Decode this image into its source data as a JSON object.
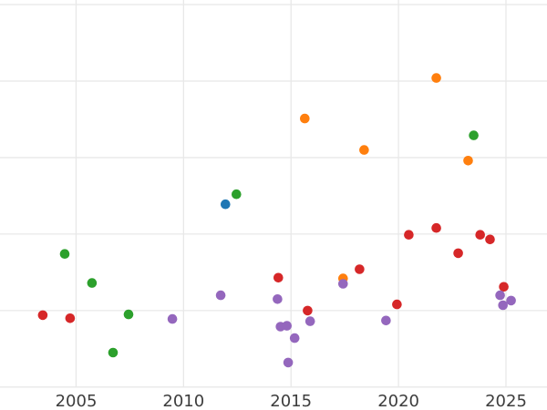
{
  "chart_data": {
    "type": "scatter",
    "title": "",
    "xlabel": "",
    "ylabel": "",
    "grid": true,
    "legend": false,
    "x_axis": {
      "tick_values": [
        2005,
        2010,
        2015,
        2020,
        2025
      ],
      "tick_labels": [
        "2005",
        "2010",
        "2015",
        "2020",
        "2025"
      ],
      "domain": [
        2001.46,
        2026.91
      ]
    },
    "y_axis": {
      "tick_labels_visible": false,
      "gridline_values": [
        0,
        1,
        2,
        3,
        4,
        5
      ],
      "domain": [
        -0.3,
        5.06
      ]
    },
    "series": [
      {
        "name": "blue",
        "color": "#1f77b4",
        "points": [
          {
            "x": 2011.95,
            "y": 2.39
          }
        ]
      },
      {
        "name": "green",
        "color": "#2ca02c",
        "points": [
          {
            "x": 2004.47,
            "y": 1.74
          },
          {
            "x": 2005.74,
            "y": 1.36
          },
          {
            "x": 2006.72,
            "y": 0.45
          },
          {
            "x": 2007.44,
            "y": 0.95
          },
          {
            "x": 2012.46,
            "y": 2.52
          },
          {
            "x": 2023.5,
            "y": 3.29
          }
        ]
      },
      {
        "name": "orange",
        "color": "#ff7f0e",
        "points": [
          {
            "x": 2015.64,
            "y": 3.51
          },
          {
            "x": 2017.42,
            "y": 1.42
          },
          {
            "x": 2018.4,
            "y": 3.1
          },
          {
            "x": 2021.76,
            "y": 4.04
          },
          {
            "x": 2023.24,
            "y": 2.96
          }
        ]
      },
      {
        "name": "red",
        "color": "#d62728",
        "points": [
          {
            "x": 2003.45,
            "y": 0.94
          },
          {
            "x": 2004.72,
            "y": 0.9
          },
          {
            "x": 2014.41,
            "y": 1.43
          },
          {
            "x": 2015.77,
            "y": 1.0
          },
          {
            "x": 2018.19,
            "y": 1.54
          },
          {
            "x": 2019.93,
            "y": 1.08
          },
          {
            "x": 2020.48,
            "y": 1.99
          },
          {
            "x": 2021.76,
            "y": 2.08
          },
          {
            "x": 2022.78,
            "y": 1.75
          },
          {
            "x": 2023.8,
            "y": 1.99
          },
          {
            "x": 2024.26,
            "y": 1.93
          },
          {
            "x": 2024.9,
            "y": 1.31
          }
        ]
      },
      {
        "name": "purple",
        "color": "#9467bd",
        "points": [
          {
            "x": 2009.48,
            "y": 0.89
          },
          {
            "x": 2011.73,
            "y": 1.2
          },
          {
            "x": 2014.37,
            "y": 1.15
          },
          {
            "x": 2014.51,
            "y": 0.79
          },
          {
            "x": 2014.81,
            "y": 0.8
          },
          {
            "x": 2014.87,
            "y": 0.32
          },
          {
            "x": 2015.17,
            "y": 0.64
          },
          {
            "x": 2015.89,
            "y": 0.86
          },
          {
            "x": 2017.42,
            "y": 1.35
          },
          {
            "x": 2019.42,
            "y": 0.87
          },
          {
            "x": 2024.73,
            "y": 1.2
          },
          {
            "x": 2024.86,
            "y": 1.07
          },
          {
            "x": 2025.24,
            "y": 1.13
          }
        ]
      }
    ]
  },
  "styles": {
    "background_color": "#ffffff",
    "gridline_color": "#e8e8e8",
    "tick_label_color": "#3d3d3d",
    "series_colors": {
      "blue": "#1f77b4",
      "orange": "#ff7f0e",
      "green": "#2ca02c",
      "red": "#d62728",
      "purple": "#9467bd"
    }
  },
  "marker": {
    "radius": 5.3
  }
}
